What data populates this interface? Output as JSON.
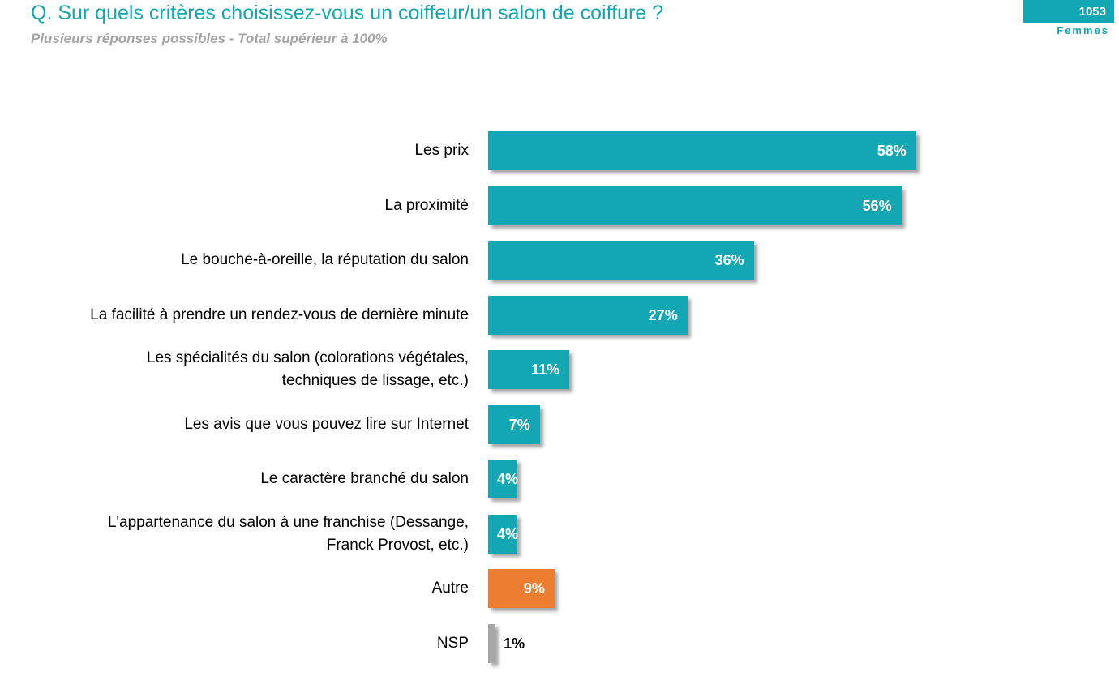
{
  "header": {
    "title": "Q. Sur quels critères choisissez-vous un coiffeur/un salon de coiffure ?",
    "subtitle": "Plusieurs réponses possibles - Total supérieur à 100%",
    "base_count": "1053",
    "base_label": "Femmes"
  },
  "colors": {
    "accent": "#13a7b3",
    "other": "#ed7d31",
    "nsp": "#a6a6a6"
  },
  "chart_data": {
    "type": "bar",
    "orientation": "horizontal",
    "title": "Q. Sur quels critères choisissez-vous un coiffeur/un salon de coiffure ?",
    "subtitle": "Plusieurs réponses possibles - Total supérieur à 100%",
    "unit": "%",
    "categories": [
      "Les prix",
      "La proximité",
      "Le bouche-à-oreille, la réputation du salon",
      "La facilité à prendre un rendez-vous de dernière minute",
      "Les spécialités du salon (colorations végétales, techniques de lissage, etc.)",
      "Les avis que vous pouvez lire sur Internet",
      "Le caractère branché du salon",
      "L'appartenance du salon à une franchise (Dessange, Franck Provost, etc.)",
      "Autre",
      "NSP"
    ],
    "label_lines": [
      [
        "Les prix"
      ],
      [
        "La proximité"
      ],
      [
        "Le bouche-à-oreille, la réputation du salon"
      ],
      [
        "La facilité à prendre un rendez-vous de dernière minute"
      ],
      [
        "Les spécialités du salon (colorations végétales,",
        "techniques de lissage, etc.)"
      ],
      [
        "Les avis que vous pouvez lire sur Internet"
      ],
      [
        "Le caractère branché du salon"
      ],
      [
        "L'appartenance du salon à une franchise (Dessange,",
        "Franck Provost, etc.)"
      ],
      [
        "Autre"
      ],
      [
        "NSP"
      ]
    ],
    "values": [
      58,
      56,
      36,
      27,
      11,
      7,
      4,
      4,
      9,
      1
    ],
    "value_labels": [
      "58%",
      "56%",
      "36%",
      "27%",
      "11%",
      "7%",
      "4%",
      "4%",
      "9%",
      "1%"
    ],
    "bar_colors": [
      "#13a7b3",
      "#13a7b3",
      "#13a7b3",
      "#13a7b3",
      "#13a7b3",
      "#13a7b3",
      "#13a7b3",
      "#13a7b3",
      "#ed7d31",
      "#a6a6a6"
    ],
    "xlim": [
      0,
      100
    ],
    "grid": false,
    "legend": false
  }
}
